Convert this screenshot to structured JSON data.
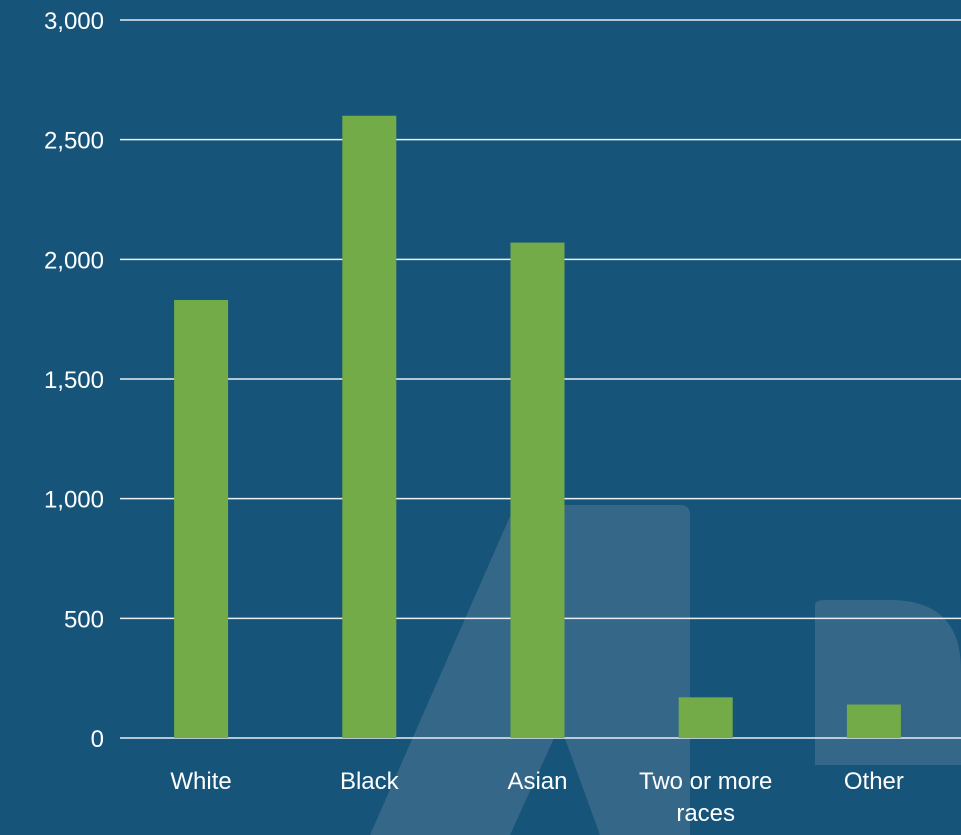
{
  "colors": {
    "background": "#16547a",
    "bar": "#72ab48",
    "gridline": "#e8eef2",
    "text": "#ffffff",
    "watermark": "#5b7f99"
  },
  "chart_data": {
    "type": "bar",
    "categories": [
      "White",
      "Black",
      "Asian",
      "Two or more races",
      "Other"
    ],
    "category_label_lines": [
      [
        "White"
      ],
      [
        "Black"
      ],
      [
        "Asian"
      ],
      [
        "Two or more",
        "races"
      ],
      [
        "Other"
      ]
    ],
    "values": [
      1830,
      2600,
      2070,
      170,
      140
    ],
    "ylim": [
      0,
      3000
    ],
    "yticks": [
      0,
      500,
      1000,
      1500,
      2000,
      2500,
      3000
    ],
    "ytick_labels": [
      "0",
      "500",
      "1,000",
      "1,500",
      "2,000",
      "2,500",
      "3,000"
    ],
    "grid": true,
    "legend": "none",
    "title": "",
    "xlabel": "",
    "ylabel": ""
  }
}
